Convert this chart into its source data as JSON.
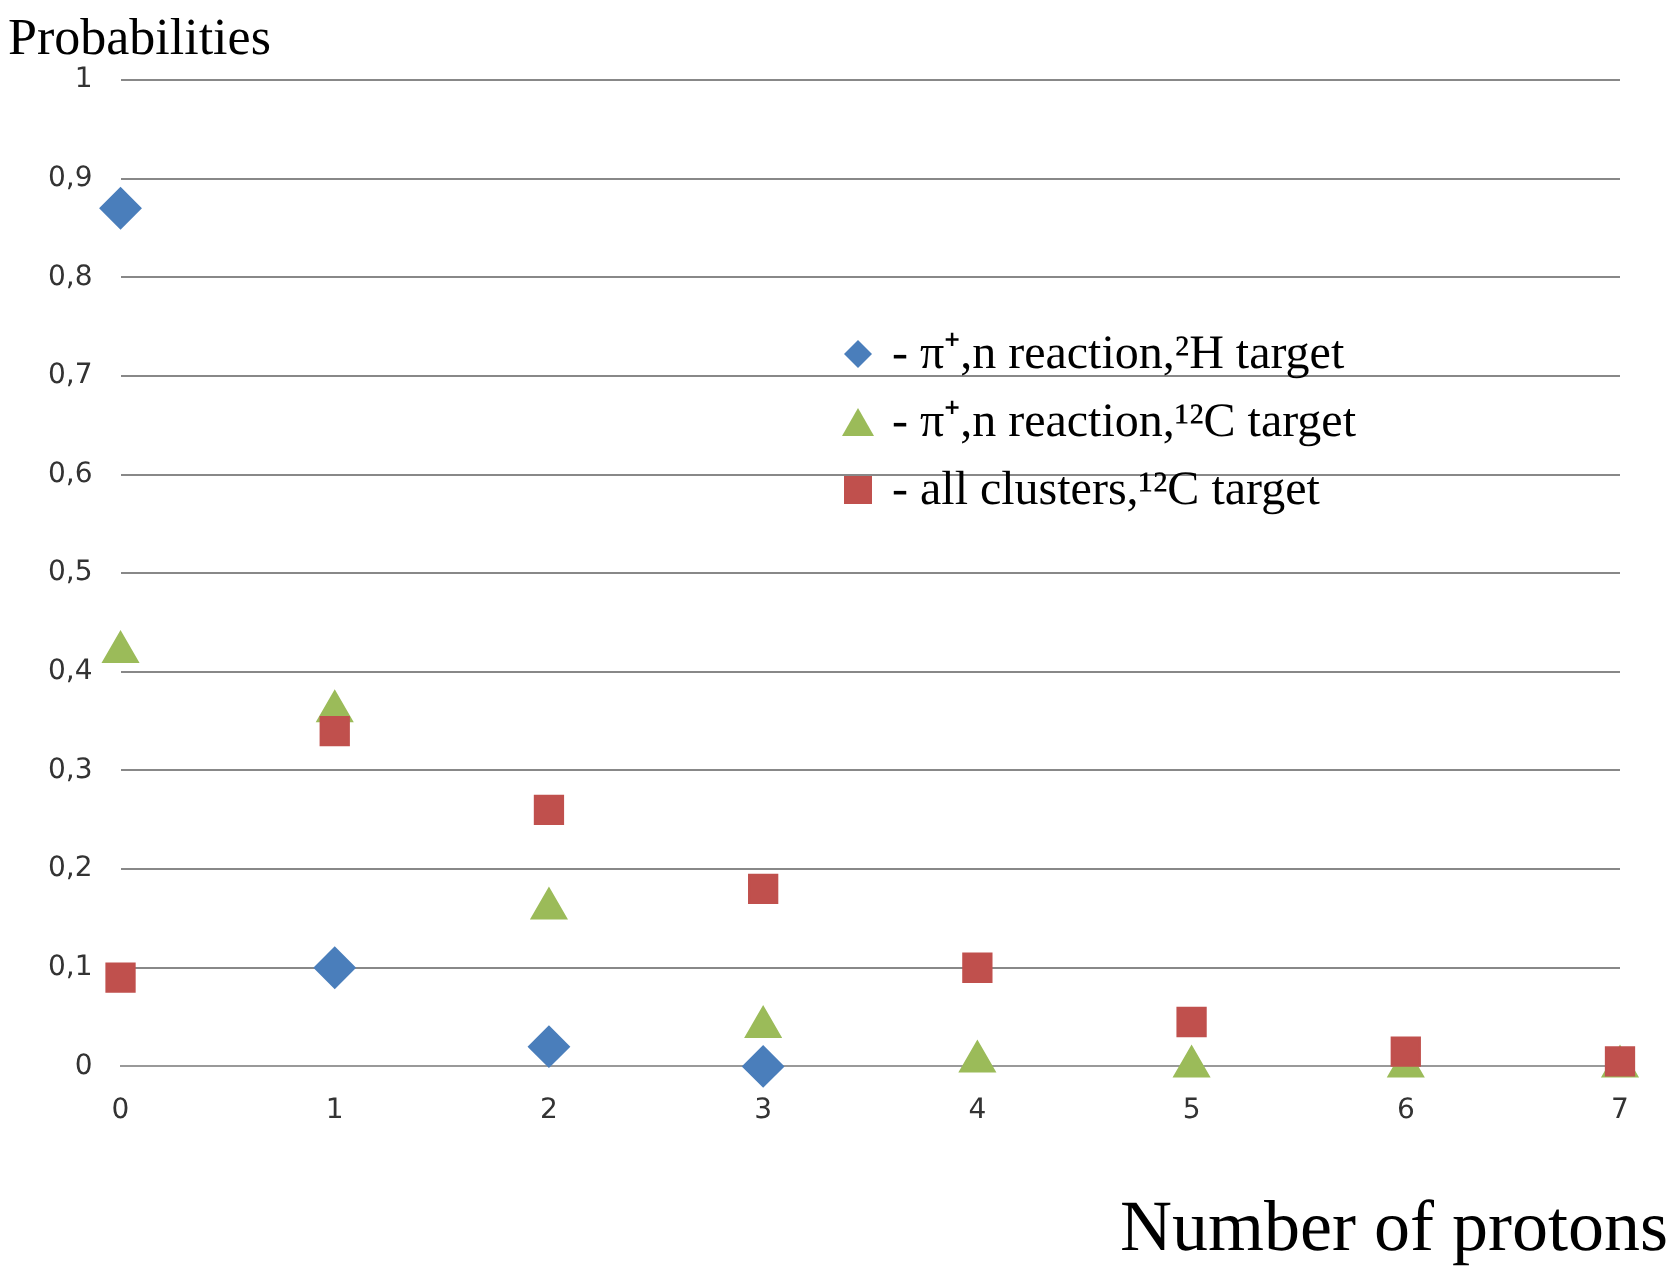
{
  "chart_data": {
    "type": "scatter",
    "xlabel": "Number of protons",
    "ylabel": "Probabilities",
    "x": [
      0,
      1,
      2,
      3,
      4,
      5,
      6,
      7
    ],
    "xlim": [
      0,
      7
    ],
    "xticks": [
      0,
      1,
      2,
      3,
      4,
      5,
      6,
      7
    ],
    "ylim": [
      0,
      1
    ],
    "yticks": [
      0,
      {
        "value": 0.1,
        "label": "0,1"
      },
      {
        "value": 0.2,
        "label": "0,2"
      },
      {
        "value": 0.3,
        "label": "0,3"
      },
      {
        "value": 0.4,
        "label": "0,4"
      },
      {
        "value": 0.5,
        "label": "0,5"
      },
      {
        "value": 0.6,
        "label": "0,6"
      },
      {
        "value": 0.7,
        "label": "0,7"
      },
      {
        "value": 0.8,
        "label": "0,8"
      },
      {
        "value": 0.9,
        "label": "0,9"
      },
      1
    ],
    "grid": "y",
    "legend": "top right",
    "series": [
      {
        "name": "- π⁺,n reaction,²H target",
        "color": "#4a7ebb",
        "marker": "diamond",
        "values": [
          0.87,
          0.1,
          0.02,
          0,
          null,
          null,
          null,
          null
        ]
      },
      {
        "name": "- π⁺,n reaction,¹²C target",
        "color": "#9bbb59",
        "marker": "triangle",
        "values": [
          0.42,
          0.36,
          0.16,
          0.04,
          0.005,
          0,
          0,
          0
        ]
      },
      {
        "name": "- all clusters,¹²C target",
        "color": "#c0504d",
        "marker": "square",
        "values": [
          0.09,
          0.34,
          0.26,
          0.18,
          0.1,
          0.045,
          0.015,
          0.005
        ]
      }
    ]
  }
}
